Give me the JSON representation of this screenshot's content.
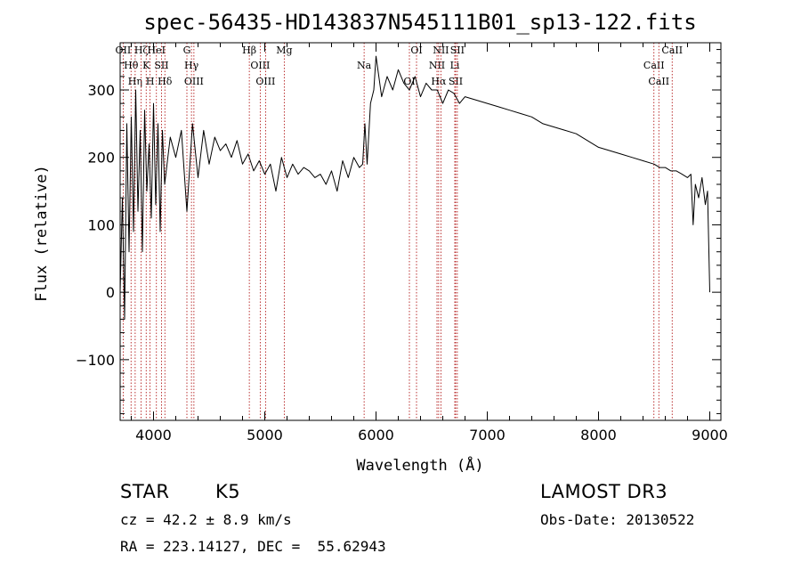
{
  "chart_data": {
    "type": "line",
    "title": "spec-56435-HD143837N545111B01_sp13-122.fits",
    "xlabel": "Wavelength (Å)",
    "ylabel": "Flux (relative)",
    "xlim": [
      3700,
      9100
    ],
    "ylim": [
      -190,
      370
    ],
    "x_ticks": [
      4000,
      5000,
      6000,
      7000,
      8000,
      9000
    ],
    "y_ticks": [
      -100,
      0,
      100,
      200,
      300
    ],
    "x_tick_labels": [
      "4000",
      "5000",
      "6000",
      "7000",
      "8000",
      "9000"
    ],
    "y_tick_labels": [
      "−100",
      "0",
      "100",
      "200",
      "300"
    ],
    "series": [
      {
        "name": "flux",
        "x": [
          3700,
          3720,
          3740,
          3760,
          3780,
          3800,
          3820,
          3840,
          3860,
          3880,
          3900,
          3920,
          3940,
          3960,
          3980,
          4000,
          4020,
          4040,
          4060,
          4080,
          4100,
          4150,
          4200,
          4250,
          4300,
          4350,
          4400,
          4450,
          4500,
          4550,
          4600,
          4650,
          4700,
          4750,
          4800,
          4850,
          4900,
          4950,
          5000,
          5050,
          5100,
          5150,
          5200,
          5250,
          5300,
          5350,
          5400,
          5450,
          5500,
          5550,
          5600,
          5650,
          5700,
          5750,
          5800,
          5850,
          5880,
          5900,
          5920,
          5950,
          5980,
          6000,
          6050,
          6100,
          6150,
          6200,
          6250,
          6300,
          6350,
          6400,
          6450,
          6500,
          6550,
          6600,
          6650,
          6700,
          6750,
          6800,
          6900,
          7000,
          7100,
          7200,
          7300,
          7400,
          7500,
          7600,
          7700,
          7800,
          7900,
          8000,
          8100,
          8200,
          8300,
          8400,
          8500,
          8550,
          8600,
          8650,
          8700,
          8750,
          8800,
          8830,
          8850,
          8870,
          8900,
          8930,
          8960,
          8980,
          9000
        ],
        "y": [
          0,
          140,
          -40,
          250,
          60,
          260,
          90,
          300,
          120,
          240,
          60,
          270,
          150,
          220,
          110,
          280,
          130,
          250,
          90,
          240,
          160,
          230,
          200,
          240,
          120,
          250,
          170,
          240,
          190,
          230,
          210,
          220,
          200,
          225,
          190,
          205,
          180,
          195,
          175,
          190,
          150,
          200,
          170,
          190,
          175,
          185,
          180,
          170,
          175,
          160,
          180,
          150,
          195,
          170,
          200,
          185,
          190,
          250,
          190,
          280,
          300,
          350,
          290,
          320,
          300,
          330,
          310,
          300,
          320,
          290,
          310,
          300,
          300,
          280,
          300,
          295,
          280,
          290,
          285,
          280,
          275,
          270,
          265,
          260,
          250,
          245,
          240,
          235,
          225,
          215,
          210,
          205,
          200,
          195,
          190,
          185,
          185,
          180,
          180,
          175,
          170,
          175,
          100,
          160,
          140,
          170,
          130,
          150,
          0
        ]
      }
    ],
    "line_markers": [
      {
        "wavelength": 3727,
        "label": "OII"
      },
      {
        "wavelength": 3798,
        "label": "Hθ"
      },
      {
        "wavelength": 3835,
        "label": "Hη"
      },
      {
        "wavelength": 3889,
        "label": "Hζ"
      },
      {
        "wavelength": 3934,
        "label": "K"
      },
      {
        "wavelength": 3969,
        "label": "H"
      },
      {
        "wavelength": 4026,
        "label": "HeI"
      },
      {
        "wavelength": 4072,
        "label": "SII"
      },
      {
        "wavelength": 4102,
        "label": "Hδ"
      },
      {
        "wavelength": 4300,
        "label": "G"
      },
      {
        "wavelength": 4341,
        "label": "Hγ"
      },
      {
        "wavelength": 4363,
        "label": "OIII"
      },
      {
        "wavelength": 4861,
        "label": "Hβ"
      },
      {
        "wavelength": 4959,
        "label": "OIII"
      },
      {
        "wavelength": 5007,
        "label": "OIII"
      },
      {
        "wavelength": 5175,
        "label": "Mg"
      },
      {
        "wavelength": 5893,
        "label": "Na"
      },
      {
        "wavelength": 6300,
        "label": "OI"
      },
      {
        "wavelength": 6364,
        "label": "OI"
      },
      {
        "wavelength": 6548,
        "label": "NII"
      },
      {
        "wavelength": 6563,
        "label": "Hα"
      },
      {
        "wavelength": 6583,
        "label": "NII"
      },
      {
        "wavelength": 6708,
        "label": "Li"
      },
      {
        "wavelength": 6716,
        "label": "SII"
      },
      {
        "wavelength": 6731,
        "label": "SII"
      },
      {
        "wavelength": 8498,
        "label": "CaII"
      },
      {
        "wavelength": 8542,
        "label": "CaII"
      },
      {
        "wavelength": 8662,
        "label": "CaII"
      }
    ],
    "colors": {
      "spectrum": "#000000",
      "marker": "#aa0000",
      "axes": "#000000"
    }
  },
  "info": {
    "class": "STAR",
    "subclass": "K5",
    "redshift": "cz = 42.2 ± 8.9 km/s",
    "coords": "RA = 223.14127, DEC =  55.62943",
    "survey": "LAMOST DR3",
    "obs_date": "Obs-Date: 20130522"
  }
}
